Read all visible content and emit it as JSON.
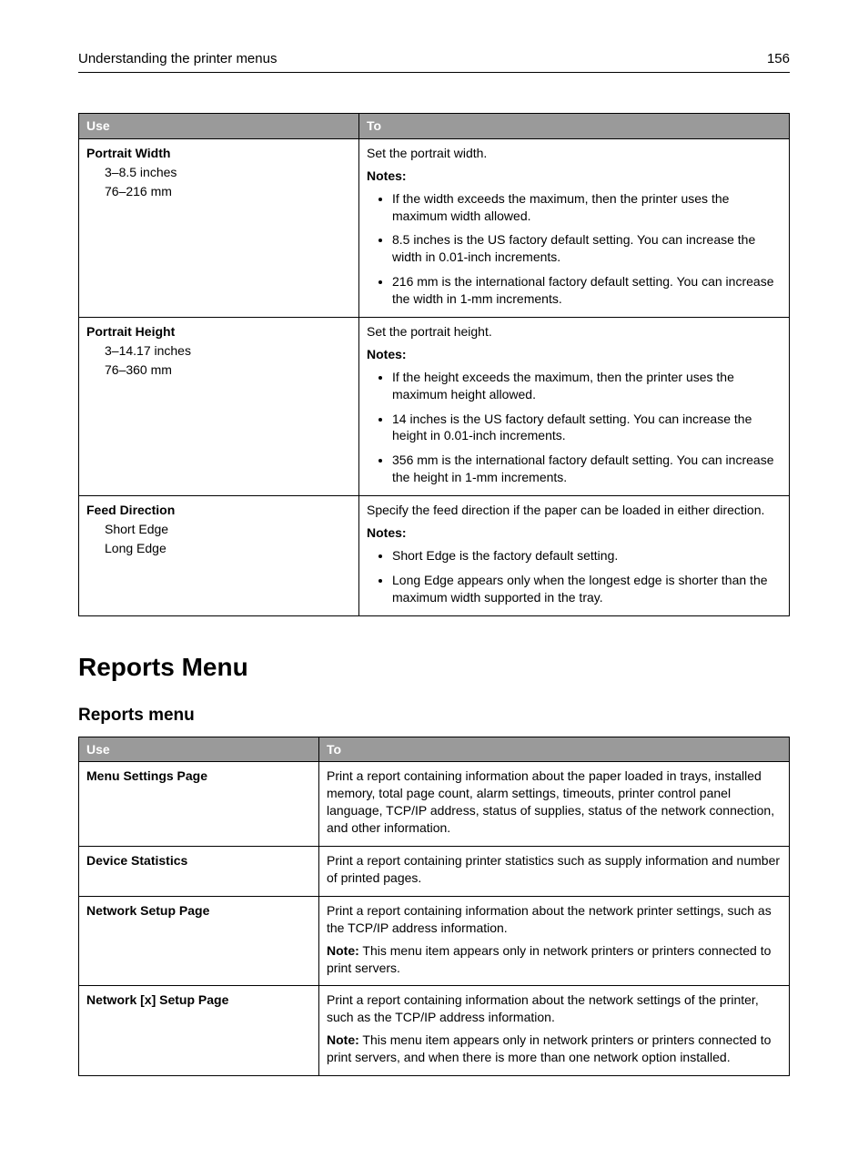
{
  "header": {
    "title": "Understanding the printer menus",
    "page_number": "156"
  },
  "table1": {
    "columns": [
      "Use",
      "To"
    ],
    "rows": [
      {
        "use": {
          "title": "Portrait Width",
          "options": [
            "3–8.5 inches",
            "76–216 mm"
          ]
        },
        "to": {
          "lead": "Set the portrait width.",
          "notes_label": "Notes:",
          "bullets": [
            "If the width exceeds the maximum, then the printer uses the maximum width allowed.",
            "8.5 inches is the US factory default setting. You can increase the width in 0.01‑inch increments.",
            "216 mm is the international factory default setting. You can increase the width in 1‑mm increments."
          ]
        }
      },
      {
        "use": {
          "title": "Portrait Height",
          "options": [
            "3–14.17 inches",
            "76–360 mm"
          ]
        },
        "to": {
          "lead": "Set the portrait height.",
          "notes_label": "Notes:",
          "bullets": [
            "If the height exceeds the maximum, then the printer uses the maximum height allowed.",
            "14 inches is the US factory default setting. You can increase the height in 0.01‑inch increments.",
            "356 mm is the international factory default setting. You can increase the height in 1‑mm increments."
          ]
        }
      },
      {
        "use": {
          "title": "Feed Direction",
          "options": [
            "Short Edge",
            "Long Edge"
          ]
        },
        "to": {
          "lead": "Specify the feed direction if the paper can be loaded in either direction.",
          "notes_label": "Notes:",
          "bullets": [
            "Short Edge is the factory default setting.",
            "Long Edge appears only when the longest edge is shorter than the maximum width supported in the tray."
          ]
        }
      }
    ]
  },
  "section_heading": "Reports Menu",
  "subsection_heading": "Reports menu",
  "table2": {
    "columns": [
      "Use",
      "To"
    ],
    "rows": [
      {
        "use": {
          "title": "Menu Settings Page"
        },
        "to": {
          "paras": [
            "Print a report containing information about the paper loaded in trays, installed memory, total page count, alarm settings, timeouts, printer control panel language, TCP/IP address, status of supplies, status of the network connection, and other information."
          ]
        }
      },
      {
        "use": {
          "title": "Device Statistics"
        },
        "to": {
          "paras": [
            "Print a report containing printer statistics such as supply information and number of printed pages."
          ]
        }
      },
      {
        "use": {
          "title": "Network Setup Page"
        },
        "to": {
          "paras": [
            "Print a report containing information about the network printer settings, such as the TCP/IP address information."
          ],
          "note": {
            "label": "Note:",
            "text": " This menu item appears only in network printers or printers connected to print servers."
          }
        }
      },
      {
        "use": {
          "title": "Network [x] Setup Page"
        },
        "to": {
          "paras": [
            "Print a report containing information about the network settings of the printer, such as the TCP/IP address information."
          ],
          "note": {
            "label": "Note:",
            "text": " This menu item appears only in network printers or printers connected to print servers, and when there is more than one network option installed."
          }
        }
      }
    ]
  }
}
